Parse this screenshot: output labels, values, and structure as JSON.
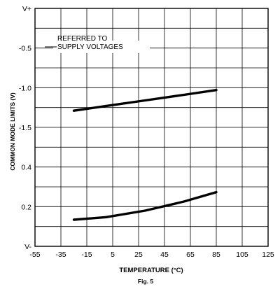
{
  "chart_data": {
    "type": "line",
    "title": "",
    "annotation": [
      "REFERRED TO",
      "SUPPLY VOLTAGES"
    ],
    "xlabel": "TEMPERATURE (°C)",
    "ylabel": "COMMON MODE LIMITS (V)",
    "caption": "Fig. 5",
    "x_ticks": [
      "-55",
      "-35",
      "-15",
      "5",
      "25",
      "45",
      "65",
      "85",
      "105",
      "125"
    ],
    "xlim": [
      -55,
      125
    ],
    "y_ticks": [
      "V+",
      "-0.5",
      "-1.0",
      "-1.5",
      "0.4",
      "0.2",
      "V-"
    ],
    "grid": true,
    "series": [
      {
        "x": [
          -25,
          0,
          30,
          60,
          85
        ],
        "y": [
          -1.29,
          -1.23,
          -1.16,
          -1.09,
          -1.03
        ]
      },
      {
        "x": [
          -25,
          0,
          30,
          60,
          85
        ],
        "y": [
          0.134,
          0.147,
          0.18,
          0.226,
          0.273
        ]
      }
    ]
  }
}
